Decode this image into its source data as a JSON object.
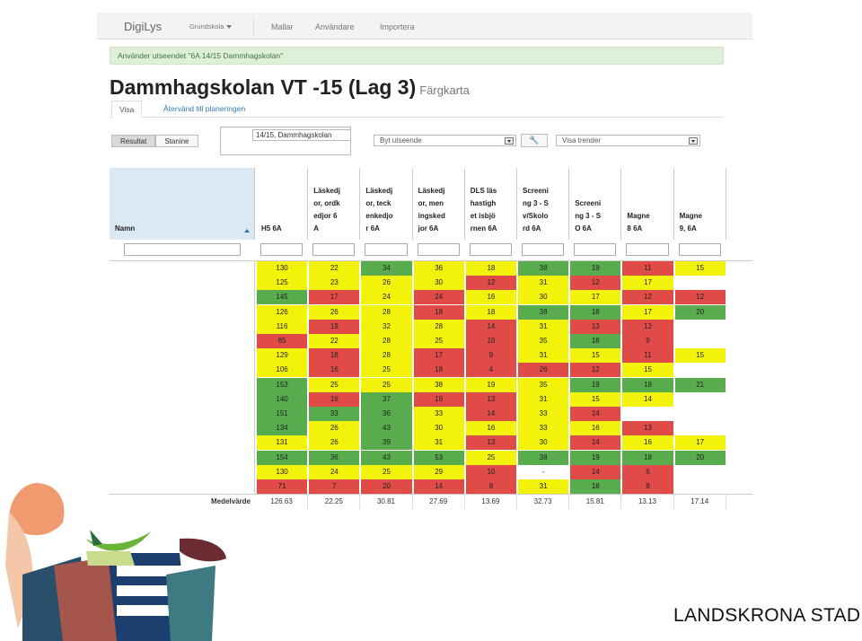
{
  "navbar": {
    "brand": "DigiLys",
    "items": [
      {
        "label": "Grundskola",
        "dropdown": true
      },
      {
        "label": "Mallar"
      },
      {
        "label": "Användare"
      },
      {
        "label": "Importera"
      }
    ]
  },
  "alert": "Använder utseendet \"6A 14/15 Dammhagskolan\"",
  "title": {
    "main": "Dammhagskolan VT -15 (Lag 3)",
    "sub": "Färgkarta"
  },
  "tabs": [
    {
      "label": "Visa",
      "active": true
    },
    {
      "label": "Återvänd till planeringen"
    }
  ],
  "controls": {
    "buttons": [
      {
        "label": "Resultat",
        "active": true
      },
      {
        "label": "Stanine"
      }
    ],
    "view_label": "14/15, Dammhagskolan",
    "select_view": "Byt utseende",
    "select_trends": "Visa trender"
  },
  "table": {
    "name_header": "Namn",
    "columns": [
      "H5 6A",
      "Läskedj\nor, ordk\nedjor 6\nA",
      "Läskedj\nor, teck\nenkedjo\nr 6A",
      "Läskedj\nor, men\ningsked\njor 6A",
      "DLS läs\nhastigh\net isbjö\nrnen 6A",
      "Screeni\nng 3 - S\nv/Skolo\nrd 6A",
      "Screeni\nng 3 - S\nO 6A",
      "Magne\n8 6A",
      "Magne\n9, 6A"
    ],
    "rows": [
      [
        [
          "130",
          "y"
        ],
        [
          "22",
          "y"
        ],
        [
          "34",
          "g"
        ],
        [
          "36",
          "y"
        ],
        [
          "18",
          "y"
        ],
        [
          "38",
          "g"
        ],
        [
          "19",
          "g"
        ],
        [
          "11",
          "r"
        ],
        [
          "15",
          "y"
        ]
      ],
      [
        [
          "125",
          "y"
        ],
        [
          "23",
          "y"
        ],
        [
          "26",
          "y"
        ],
        [
          "30",
          "y"
        ],
        [
          "12",
          "r"
        ],
        [
          "31",
          "y"
        ],
        [
          "12",
          "r"
        ],
        [
          "17",
          "y"
        ],
        [
          "",
          "w"
        ]
      ],
      [
        [
          "145",
          "g"
        ],
        [
          "17",
          "r"
        ],
        [
          "24",
          "y"
        ],
        [
          "24",
          "r"
        ],
        [
          "16",
          "y"
        ],
        [
          "30",
          "y"
        ],
        [
          "17",
          "y"
        ],
        [
          "12",
          "r"
        ],
        [
          "12",
          "r"
        ]
      ],
      [
        [
          "126",
          "y"
        ],
        [
          "26",
          "y"
        ],
        [
          "28",
          "y"
        ],
        [
          "18",
          "r"
        ],
        [
          "18",
          "y"
        ],
        [
          "38",
          "g"
        ],
        [
          "18",
          "g"
        ],
        [
          "17",
          "y"
        ],
        [
          "20",
          "g"
        ]
      ],
      [
        [
          "116",
          "y"
        ],
        [
          "19",
          "r"
        ],
        [
          "32",
          "y"
        ],
        [
          "28",
          "y"
        ],
        [
          "14",
          "r"
        ],
        [
          "31",
          "y"
        ],
        [
          "13",
          "r"
        ],
        [
          "12",
          "r"
        ],
        [
          "",
          "w"
        ]
      ],
      [
        [
          "85",
          "r"
        ],
        [
          "22",
          "y"
        ],
        [
          "28",
          "y"
        ],
        [
          "25",
          "y"
        ],
        [
          "10",
          "r"
        ],
        [
          "35",
          "y"
        ],
        [
          "18",
          "g"
        ],
        [
          "9",
          "r"
        ],
        [
          "",
          "w"
        ]
      ],
      [
        [
          "129",
          "y"
        ],
        [
          "18",
          "r"
        ],
        [
          "28",
          "y"
        ],
        [
          "17",
          "r"
        ],
        [
          "9",
          "r"
        ],
        [
          "31",
          "y"
        ],
        [
          "15",
          "y"
        ],
        [
          "11",
          "r"
        ],
        [
          "15",
          "y"
        ]
      ],
      [
        [
          "106",
          "y"
        ],
        [
          "16",
          "r"
        ],
        [
          "25",
          "y"
        ],
        [
          "18",
          "r"
        ],
        [
          "4",
          "r"
        ],
        [
          "26",
          "r"
        ],
        [
          "12",
          "r"
        ],
        [
          "15",
          "y"
        ],
        [
          "",
          "w"
        ]
      ],
      [
        [
          "153",
          "g"
        ],
        [
          "25",
          "y"
        ],
        [
          "25",
          "y"
        ],
        [
          "38",
          "y"
        ],
        [
          "19",
          "y"
        ],
        [
          "35",
          "y"
        ],
        [
          "19",
          "g"
        ],
        [
          "18",
          "g"
        ],
        [
          "21",
          "g"
        ]
      ],
      [
        [
          "140",
          "g"
        ],
        [
          "16",
          "r"
        ],
        [
          "37",
          "g"
        ],
        [
          "19",
          "r"
        ],
        [
          "13",
          "r"
        ],
        [
          "31",
          "y"
        ],
        [
          "15",
          "y"
        ],
        [
          "14",
          "y"
        ],
        [
          "",
          "w"
        ]
      ],
      [
        [
          "151",
          "g"
        ],
        [
          "33",
          "g"
        ],
        [
          "36",
          "g"
        ],
        [
          "33",
          "y"
        ],
        [
          "14",
          "r"
        ],
        [
          "33",
          "y"
        ],
        [
          "14",
          "r"
        ],
        [
          "",
          "w"
        ],
        [
          "",
          "w"
        ]
      ],
      [
        [
          "134",
          "g"
        ],
        [
          "26",
          "y"
        ],
        [
          "43",
          "g"
        ],
        [
          "30",
          "y"
        ],
        [
          "16",
          "y"
        ],
        [
          "33",
          "y"
        ],
        [
          "16",
          "y"
        ],
        [
          "13",
          "r"
        ],
        [
          "",
          "w"
        ]
      ],
      [
        [
          "131",
          "y"
        ],
        [
          "26",
          "y"
        ],
        [
          "39",
          "g"
        ],
        [
          "31",
          "y"
        ],
        [
          "13",
          "r"
        ],
        [
          "30",
          "y"
        ],
        [
          "14",
          "r"
        ],
        [
          "16",
          "y"
        ],
        [
          "17",
          "y"
        ]
      ],
      [
        [
          "154",
          "g"
        ],
        [
          "36",
          "g"
        ],
        [
          "43",
          "g"
        ],
        [
          "53",
          "g"
        ],
        [
          "25",
          "y"
        ],
        [
          "38",
          "g"
        ],
        [
          "19",
          "g"
        ],
        [
          "18",
          "g"
        ],
        [
          "20",
          "g"
        ]
      ],
      [
        [
          "130",
          "y"
        ],
        [
          "24",
          "y"
        ],
        [
          "25",
          "y"
        ],
        [
          "29",
          "y"
        ],
        [
          "10",
          "r"
        ],
        [
          "-",
          "w"
        ],
        [
          "14",
          "r"
        ],
        [
          "6",
          "r"
        ],
        [
          "",
          "w"
        ]
      ],
      [
        [
          "71",
          "r"
        ],
        [
          "7",
          "r"
        ],
        [
          "20",
          "r"
        ],
        [
          "14",
          "r"
        ],
        [
          "8",
          "r"
        ],
        [
          "31",
          "y"
        ],
        [
          "18",
          "g"
        ],
        [
          "8",
          "r"
        ],
        [
          "",
          "w"
        ]
      ]
    ],
    "average_label": "Medelvärde",
    "averages": [
      "126.63",
      "22.25",
      "30.81",
      "27.69",
      "13.69",
      "32.73",
      "15.81",
      "13.13",
      "17.14"
    ]
  },
  "colors": {
    "green": "#58ac4e",
    "yellow": "#f2f20a",
    "red": "#e04a47",
    "header_blue": "#dbe9f5"
  },
  "footer": {
    "brand": "LANDSKRONA STAD"
  }
}
